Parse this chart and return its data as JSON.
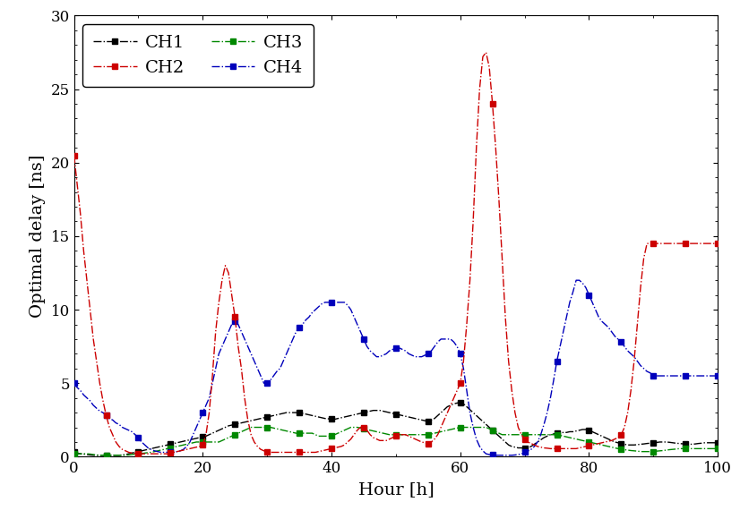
{
  "title": "",
  "xlabel": "Hour [h]",
  "ylabel": "Optimal delay [ns]",
  "xlim": [
    0,
    100
  ],
  "ylim": [
    0,
    30
  ],
  "xticks": [
    0,
    20,
    40,
    60,
    80,
    100
  ],
  "yticks": [
    0,
    5,
    10,
    15,
    20,
    25,
    30
  ],
  "channels": {
    "CH1": {
      "color": "#000000",
      "marker": "s",
      "markersize": 4
    },
    "CH2": {
      "color": "#cc0000",
      "marker": "s",
      "markersize": 4
    },
    "CH3": {
      "color": "#008800",
      "marker": "s",
      "markersize": 4
    },
    "CH4": {
      "color": "#0000bb",
      "marker": "s",
      "markersize": 4
    }
  },
  "legend_loc": "upper left",
  "figsize": [
    8.26,
    5.8
  ],
  "dpi": 100,
  "CH1_x": [
    0.0,
    0.5,
    1.0,
    1.5,
    2.0,
    2.5,
    3.0,
    3.5,
    4.0,
    4.5,
    5.0,
    5.5,
    6.0,
    6.5,
    7.0,
    7.5,
    8.0,
    8.5,
    9.0,
    9.5,
    10.0,
    10.5,
    11.0,
    11.5,
    12.0,
    12.5,
    13.0,
    13.5,
    14.0,
    14.5,
    15.0,
    15.5,
    16.0,
    16.5,
    17.0,
    17.5,
    18.0,
    18.5,
    19.0,
    19.5,
    20.0,
    20.5,
    21.0,
    21.5,
    22.0,
    22.5,
    23.0,
    23.5,
    24.0,
    24.5,
    25.0,
    25.5,
    26.0,
    26.5,
    27.0,
    27.5,
    28.0,
    28.5,
    29.0,
    29.5,
    30.0,
    30.5,
    31.0,
    31.5,
    32.0,
    32.5,
    33.0,
    33.5,
    34.0,
    34.5,
    35.0,
    35.5,
    36.0,
    36.5,
    37.0,
    37.5,
    38.0,
    38.5,
    39.0,
    39.5,
    40.0,
    40.5,
    41.0,
    41.5,
    42.0,
    42.5,
    43.0,
    43.5,
    44.0,
    44.5,
    45.0,
    45.5,
    46.0,
    46.5,
    47.0,
    47.5,
    48.0,
    48.5,
    49.0,
    49.5,
    50.0,
    50.5,
    51.0,
    51.5,
    52.0,
    52.5,
    53.0,
    53.5,
    54.0,
    54.5,
    55.0,
    55.5,
    56.0,
    56.5,
    57.0,
    57.5,
    58.0,
    58.5,
    59.0,
    59.5,
    60.0,
    60.5,
    61.0,
    61.5,
    62.0,
    62.5,
    63.0,
    63.5,
    64.0,
    64.5,
    65.0,
    65.5,
    66.0,
    66.5,
    67.0,
    67.5,
    68.0,
    68.5,
    69.0,
    69.5,
    70.0,
    70.5,
    71.0,
    71.5,
    72.0,
    72.5,
    73.0,
    73.5,
    74.0,
    74.5,
    75.0,
    75.5,
    76.0,
    76.5,
    77.0,
    77.5,
    78.0,
    78.5,
    79.0,
    79.5,
    80.0,
    80.5,
    81.0,
    81.5,
    82.0,
    82.5,
    83.0,
    83.5,
    84.0,
    84.5,
    85.0,
    85.5,
    86.0,
    86.5,
    87.0,
    87.5,
    88.0,
    88.5,
    89.0,
    89.5,
    90.0,
    90.5,
    91.0,
    91.5,
    92.0,
    92.5,
    93.0,
    93.5,
    94.0,
    94.5,
    95.0,
    95.5,
    96.0,
    96.5,
    97.0,
    97.5,
    98.0,
    98.5,
    99.0,
    99.5,
    100.0
  ],
  "CH1_y": [
    0.3,
    0.25,
    0.2,
    0.18,
    0.15,
    0.12,
    0.1,
    0.1,
    0.1,
    0.1,
    0.1,
    0.1,
    0.1,
    0.1,
    0.1,
    0.12,
    0.15,
    0.2,
    0.25,
    0.3,
    0.35,
    0.4,
    0.45,
    0.5,
    0.55,
    0.6,
    0.65,
    0.7,
    0.75,
    0.8,
    0.85,
    0.9,
    0.95,
    1.0,
    1.05,
    1.1,
    1.15,
    1.2,
    1.25,
    1.3,
    1.35,
    1.4,
    1.5,
    1.6,
    1.7,
    1.8,
    1.9,
    2.0,
    2.1,
    2.15,
    2.2,
    2.25,
    2.3,
    2.35,
    2.4,
    2.45,
    2.5,
    2.55,
    2.6,
    2.65,
    2.7,
    2.75,
    2.8,
    2.85,
    2.9,
    2.95,
    3.0,
    3.0,
    3.0,
    3.0,
    3.0,
    2.95,
    2.9,
    2.85,
    2.8,
    2.75,
    2.7,
    2.65,
    2.6,
    2.58,
    2.55,
    2.55,
    2.6,
    2.65,
    2.7,
    2.75,
    2.8,
    2.85,
    2.9,
    2.95,
    3.0,
    3.05,
    3.1,
    3.15,
    3.15,
    3.15,
    3.1,
    3.05,
    3.0,
    2.95,
    2.9,
    2.85,
    2.8,
    2.75,
    2.7,
    2.65,
    2.6,
    2.55,
    2.5,
    2.45,
    2.4,
    2.5,
    2.6,
    2.8,
    3.0,
    3.2,
    3.4,
    3.5,
    3.6,
    3.65,
    3.7,
    3.6,
    3.4,
    3.2,
    3.0,
    2.8,
    2.6,
    2.4,
    2.2,
    2.0,
    1.8,
    1.6,
    1.4,
    1.2,
    1.0,
    0.8,
    0.7,
    0.65,
    0.6,
    0.6,
    0.55,
    0.6,
    0.7,
    0.85,
    1.0,
    1.15,
    1.3,
    1.4,
    1.5,
    1.55,
    1.6,
    1.6,
    1.65,
    1.65,
    1.7,
    1.7,
    1.75,
    1.8,
    1.85,
    1.85,
    1.8,
    1.7,
    1.6,
    1.5,
    1.4,
    1.3,
    1.2,
    1.1,
    1.0,
    0.95,
    0.9,
    0.85,
    0.8,
    0.8,
    0.8,
    0.82,
    0.85,
    0.87,
    0.9,
    0.92,
    0.95,
    0.97,
    1.0,
    1.0,
    1.0,
    0.98,
    0.95,
    0.92,
    0.9,
    0.88,
    0.85,
    0.85,
    0.85,
    0.87,
    0.9,
    0.92,
    0.95,
    0.95,
    0.95,
    0.95,
    0.95
  ],
  "CH2_x": [
    0.0,
    0.5,
    1.0,
    1.5,
    2.0,
    2.5,
    3.0,
    3.5,
    4.0,
    4.5,
    5.0,
    5.5,
    6.0,
    6.5,
    7.0,
    7.5,
    8.0,
    8.5,
    9.0,
    9.5,
    10.0,
    10.5,
    11.0,
    11.5,
    12.0,
    12.5,
    13.0,
    13.5,
    14.0,
    14.5,
    15.0,
    15.5,
    16.0,
    16.5,
    17.0,
    17.5,
    18.0,
    18.5,
    19.0,
    19.5,
    20.0,
    20.5,
    21.0,
    21.5,
    22.0,
    22.5,
    23.0,
    23.5,
    24.0,
    24.5,
    25.0,
    25.5,
    26.0,
    26.5,
    27.0,
    27.5,
    28.0,
    28.5,
    29.0,
    29.5,
    30.0,
    30.5,
    31.0,
    31.5,
    32.0,
    32.5,
    33.0,
    33.5,
    34.0,
    34.5,
    35.0,
    35.5,
    36.0,
    36.5,
    37.0,
    37.5,
    38.0,
    38.5,
    39.0,
    39.5,
    40.0,
    40.5,
    41.0,
    41.5,
    42.0,
    42.5,
    43.0,
    43.5,
    44.0,
    44.5,
    45.0,
    45.5,
    46.0,
    46.5,
    47.0,
    47.5,
    48.0,
    48.5,
    49.0,
    49.5,
    50.0,
    50.5,
    51.0,
    51.5,
    52.0,
    52.5,
    53.0,
    53.5,
    54.0,
    54.5,
    55.0,
    55.5,
    56.0,
    56.5,
    57.0,
    57.5,
    58.0,
    58.5,
    59.0,
    59.5,
    60.0,
    60.5,
    61.0,
    61.5,
    62.0,
    62.5,
    63.0,
    63.5,
    64.0,
    64.5,
    65.0,
    65.5,
    66.0,
    66.5,
    67.0,
    67.5,
    68.0,
    68.5,
    69.0,
    69.5,
    70.0,
    70.5,
    71.0,
    71.5,
    72.0,
    72.5,
    73.0,
    73.5,
    74.0,
    74.5,
    75.0,
    75.5,
    76.0,
    76.5,
    77.0,
    77.5,
    78.0,
    78.5,
    79.0,
    79.5,
    80.0,
    80.5,
    81.0,
    81.5,
    82.0,
    82.5,
    83.0,
    83.5,
    84.0,
    84.5,
    85.0,
    85.5,
    86.0,
    86.5,
    87.0,
    87.5,
    88.0,
    88.5,
    89.0,
    89.5,
    90.0,
    90.5,
    91.0,
    91.5,
    92.0,
    92.5,
    93.0,
    93.5,
    94.0,
    94.5,
    95.0,
    95.5,
    96.0,
    96.5,
    97.0,
    97.5,
    98.0,
    98.5,
    99.0,
    99.5,
    100.0
  ],
  "CH2_y": [
    20.5,
    18.5,
    16.5,
    14.0,
    12.0,
    10.0,
    8.0,
    6.5,
    5.0,
    3.8,
    2.8,
    2.0,
    1.5,
    1.0,
    0.7,
    0.5,
    0.4,
    0.3,
    0.25,
    0.22,
    0.2,
    0.2,
    0.2,
    0.2,
    0.2,
    0.2,
    0.2,
    0.2,
    0.2,
    0.2,
    0.25,
    0.3,
    0.35,
    0.4,
    0.45,
    0.5,
    0.55,
    0.6,
    0.65,
    0.7,
    0.8,
    1.5,
    3.0,
    5.5,
    8.5,
    10.5,
    12.0,
    13.0,
    12.5,
    11.0,
    9.5,
    7.5,
    6.0,
    4.0,
    2.5,
    1.5,
    1.0,
    0.7,
    0.5,
    0.4,
    0.35,
    0.3,
    0.3,
    0.3,
    0.3,
    0.3,
    0.3,
    0.3,
    0.3,
    0.3,
    0.3,
    0.3,
    0.3,
    0.3,
    0.3,
    0.3,
    0.35,
    0.4,
    0.45,
    0.5,
    0.55,
    0.6,
    0.65,
    0.7,
    0.8,
    1.0,
    1.2,
    1.5,
    1.8,
    2.0,
    2.0,
    1.8,
    1.5,
    1.3,
    1.2,
    1.1,
    1.1,
    1.1,
    1.2,
    1.3,
    1.4,
    1.5,
    1.5,
    1.5,
    1.4,
    1.3,
    1.2,
    1.1,
    1.0,
    0.95,
    0.9,
    1.0,
    1.2,
    1.5,
    2.0,
    2.5,
    3.0,
    3.5,
    4.0,
    4.5,
    5.0,
    6.5,
    9.0,
    12.0,
    16.0,
    21.0,
    25.0,
    27.2,
    27.5,
    26.5,
    24.0,
    21.0,
    17.5,
    13.5,
    9.5,
    6.5,
    4.5,
    3.0,
    2.0,
    1.5,
    1.2,
    1.0,
    0.9,
    0.8,
    0.7,
    0.65,
    0.6,
    0.58,
    0.55,
    0.55,
    0.55,
    0.55,
    0.55,
    0.55,
    0.55,
    0.55,
    0.55,
    0.6,
    0.65,
    0.7,
    0.75,
    0.8,
    0.85,
    0.9,
    0.95,
    1.0,
    1.05,
    1.1,
    1.2,
    1.3,
    1.5,
    2.0,
    3.0,
    4.5,
    6.5,
    9.0,
    11.5,
    13.5,
    14.5,
    14.5,
    14.5,
    14.5,
    14.5,
    14.5,
    14.5,
    14.5,
    14.5,
    14.5,
    14.5,
    14.5,
    14.5,
    14.5,
    14.5,
    14.5,
    14.5,
    14.5,
    14.5,
    14.5,
    14.5,
    14.5,
    14.5
  ],
  "CH3_x": [
    0.0,
    0.5,
    1.0,
    1.5,
    2.0,
    2.5,
    3.0,
    3.5,
    4.0,
    4.5,
    5.0,
    5.5,
    6.0,
    6.5,
    7.0,
    7.5,
    8.0,
    8.5,
    9.0,
    9.5,
    10.0,
    10.5,
    11.0,
    11.5,
    12.0,
    12.5,
    13.0,
    13.5,
    14.0,
    14.5,
    15.0,
    15.5,
    16.0,
    16.5,
    17.0,
    17.5,
    18.0,
    18.5,
    19.0,
    19.5,
    20.0,
    20.5,
    21.0,
    21.5,
    22.0,
    22.5,
    23.0,
    23.5,
    24.0,
    24.5,
    25.0,
    25.5,
    26.0,
    26.5,
    27.0,
    27.5,
    28.0,
    28.5,
    29.0,
    29.5,
    30.0,
    30.5,
    31.0,
    31.5,
    32.0,
    32.5,
    33.0,
    33.5,
    34.0,
    34.5,
    35.0,
    35.5,
    36.0,
    36.5,
    37.0,
    37.5,
    38.0,
    38.5,
    39.0,
    39.5,
    40.0,
    40.5,
    41.0,
    41.5,
    42.0,
    42.5,
    43.0,
    43.5,
    44.0,
    44.5,
    45.0,
    45.5,
    46.0,
    46.5,
    47.0,
    47.5,
    48.0,
    48.5,
    49.0,
    49.5,
    50.0,
    50.5,
    51.0,
    51.5,
    52.0,
    52.5,
    53.0,
    53.5,
    54.0,
    54.5,
    55.0,
    55.5,
    56.0,
    56.5,
    57.0,
    57.5,
    58.0,
    58.5,
    59.0,
    59.5,
    60.0,
    60.5,
    61.0,
    61.5,
    62.0,
    62.5,
    63.0,
    63.5,
    64.0,
    64.5,
    65.0,
    65.5,
    66.0,
    66.5,
    67.0,
    67.5,
    68.0,
    68.5,
    69.0,
    69.5,
    70.0,
    70.5,
    71.0,
    71.5,
    72.0,
    72.5,
    73.0,
    73.5,
    74.0,
    74.5,
    75.0,
    75.5,
    76.0,
    76.5,
    77.0,
    77.5,
    78.0,
    78.5,
    79.0,
    79.5,
    80.0,
    80.5,
    81.0,
    81.5,
    82.0,
    82.5,
    83.0,
    83.5,
    84.0,
    84.5,
    85.0,
    85.5,
    86.0,
    86.5,
    87.0,
    87.5,
    88.0,
    88.5,
    89.0,
    89.5,
    90.0,
    90.5,
    91.0,
    91.5,
    92.0,
    92.5,
    93.0,
    93.5,
    94.0,
    94.5,
    95.0,
    95.5,
    96.0,
    96.5,
    97.0,
    97.5,
    98.0,
    98.5,
    99.0,
    99.5,
    100.0
  ],
  "CH3_y": [
    0.2,
    0.2,
    0.2,
    0.2,
    0.2,
    0.18,
    0.15,
    0.12,
    0.1,
    0.1,
    0.1,
    0.1,
    0.1,
    0.1,
    0.1,
    0.1,
    0.1,
    0.12,
    0.15,
    0.18,
    0.2,
    0.22,
    0.25,
    0.28,
    0.3,
    0.35,
    0.4,
    0.45,
    0.5,
    0.55,
    0.6,
    0.65,
    0.7,
    0.75,
    0.8,
    0.85,
    0.9,
    0.95,
    1.0,
    1.0,
    1.0,
    1.0,
    1.0,
    1.0,
    1.0,
    1.0,
    1.1,
    1.2,
    1.3,
    1.4,
    1.5,
    1.6,
    1.7,
    1.8,
    1.9,
    2.0,
    2.0,
    2.0,
    2.0,
    2.0,
    2.0,
    2.0,
    1.95,
    1.9,
    1.85,
    1.8,
    1.75,
    1.7,
    1.65,
    1.6,
    1.6,
    1.6,
    1.6,
    1.6,
    1.6,
    1.5,
    1.4,
    1.4,
    1.4,
    1.4,
    1.4,
    1.5,
    1.6,
    1.7,
    1.8,
    1.9,
    2.0,
    2.0,
    2.0,
    1.95,
    1.9,
    1.85,
    1.8,
    1.75,
    1.7,
    1.65,
    1.6,
    1.55,
    1.5,
    1.5,
    1.5,
    1.5,
    1.5,
    1.5,
    1.5,
    1.5,
    1.5,
    1.5,
    1.5,
    1.5,
    1.5,
    1.55,
    1.6,
    1.65,
    1.7,
    1.75,
    1.8,
    1.85,
    1.9,
    1.95,
    2.0,
    2.0,
    2.0,
    2.0,
    2.0,
    2.0,
    2.0,
    2.0,
    2.0,
    1.9,
    1.8,
    1.7,
    1.6,
    1.5,
    1.5,
    1.5,
    1.5,
    1.5,
    1.5,
    1.5,
    1.5,
    1.5,
    1.5,
    1.5,
    1.5,
    1.5,
    1.5,
    1.5,
    1.5,
    1.5,
    1.5,
    1.45,
    1.4,
    1.35,
    1.3,
    1.25,
    1.2,
    1.15,
    1.1,
    1.05,
    1.0,
    0.95,
    0.9,
    0.85,
    0.8,
    0.75,
    0.7,
    0.65,
    0.6,
    0.55,
    0.5,
    0.48,
    0.45,
    0.42,
    0.4,
    0.38,
    0.35,
    0.35,
    0.35,
    0.35,
    0.35,
    0.38,
    0.4,
    0.42,
    0.45,
    0.48,
    0.5,
    0.52,
    0.55,
    0.55,
    0.55,
    0.55,
    0.55,
    0.55,
    0.55,
    0.55,
    0.55,
    0.55,
    0.55,
    0.55,
    0.55
  ],
  "CH4_x": [
    0.0,
    0.5,
    1.0,
    1.5,
    2.0,
    2.5,
    3.0,
    3.5,
    4.0,
    4.5,
    5.0,
    5.5,
    6.0,
    6.5,
    7.0,
    7.5,
    8.0,
    8.5,
    9.0,
    9.5,
    10.0,
    10.5,
    11.0,
    11.5,
    12.0,
    12.5,
    13.0,
    13.5,
    14.0,
    14.5,
    15.0,
    15.5,
    16.0,
    16.5,
    17.0,
    17.5,
    18.0,
    18.5,
    19.0,
    19.5,
    20.0,
    20.5,
    21.0,
    21.5,
    22.0,
    22.5,
    23.0,
    23.5,
    24.0,
    24.5,
    25.0,
    25.5,
    26.0,
    26.5,
    27.0,
    27.5,
    28.0,
    28.5,
    29.0,
    29.5,
    30.0,
    30.5,
    31.0,
    31.5,
    32.0,
    32.5,
    33.0,
    33.5,
    34.0,
    34.5,
    35.0,
    35.5,
    36.0,
    36.5,
    37.0,
    37.5,
    38.0,
    38.5,
    39.0,
    39.5,
    40.0,
    40.5,
    41.0,
    41.5,
    42.0,
    42.5,
    43.0,
    43.5,
    44.0,
    44.5,
    45.0,
    45.5,
    46.0,
    46.5,
    47.0,
    47.5,
    48.0,
    48.5,
    49.0,
    49.5,
    50.0,
    50.5,
    51.0,
    51.5,
    52.0,
    52.5,
    53.0,
    53.5,
    54.0,
    54.5,
    55.0,
    55.5,
    56.0,
    56.5,
    57.0,
    57.5,
    58.0,
    58.5,
    59.0,
    59.5,
    60.0,
    60.5,
    61.0,
    61.5,
    62.0,
    62.5,
    63.0,
    63.5,
    64.0,
    64.5,
    65.0,
    65.5,
    66.0,
    66.5,
    67.0,
    67.5,
    68.0,
    68.5,
    69.0,
    69.5,
    70.0,
    70.5,
    71.0,
    71.5,
    72.0,
    72.5,
    73.0,
    73.5,
    74.0,
    74.5,
    75.0,
    75.5,
    76.0,
    76.5,
    77.0,
    77.5,
    78.0,
    78.5,
    79.0,
    79.5,
    80.0,
    80.5,
    81.0,
    81.5,
    82.0,
    82.5,
    83.0,
    83.5,
    84.0,
    84.5,
    85.0,
    85.5,
    86.0,
    86.5,
    87.0,
    87.5,
    88.0,
    88.5,
    89.0,
    89.5,
    90.0,
    90.5,
    91.0,
    91.5,
    92.0,
    92.5,
    93.0,
    93.5,
    94.0,
    94.5,
    95.0,
    95.5,
    96.0,
    96.5,
    97.0,
    97.5,
    98.0,
    98.5,
    99.0,
    99.5,
    100.0
  ],
  "CH4_y": [
    5.0,
    4.7,
    4.5,
    4.2,
    4.0,
    3.8,
    3.5,
    3.3,
    3.1,
    3.0,
    2.8,
    2.6,
    2.5,
    2.3,
    2.2,
    2.0,
    1.9,
    1.8,
    1.7,
    1.5,
    1.3,
    1.0,
    0.8,
    0.6,
    0.5,
    0.4,
    0.35,
    0.3,
    0.3,
    0.3,
    0.3,
    0.3,
    0.35,
    0.4,
    0.5,
    0.7,
    1.0,
    1.5,
    2.0,
    2.5,
    3.0,
    3.5,
    4.0,
    5.0,
    6.0,
    7.0,
    7.5,
    8.0,
    8.5,
    9.0,
    9.2,
    9.0,
    8.5,
    8.0,
    7.5,
    7.0,
    6.5,
    6.0,
    5.5,
    5.0,
    5.0,
    5.2,
    5.5,
    5.8,
    6.0,
    6.5,
    7.0,
    7.5,
    8.0,
    8.5,
    8.8,
    9.0,
    9.3,
    9.5,
    9.8,
    10.0,
    10.2,
    10.4,
    10.5,
    10.5,
    10.5,
    10.5,
    10.5,
    10.5,
    10.5,
    10.3,
    10.0,
    9.5,
    9.0,
    8.5,
    8.0,
    7.5,
    7.2,
    7.0,
    6.8,
    6.8,
    6.9,
    7.0,
    7.2,
    7.3,
    7.4,
    7.4,
    7.3,
    7.2,
    7.0,
    6.9,
    6.8,
    6.8,
    6.8,
    6.9,
    7.0,
    7.2,
    7.5,
    7.8,
    8.0,
    8.0,
    8.0,
    8.0,
    7.8,
    7.5,
    7.0,
    6.0,
    4.5,
    3.0,
    2.0,
    1.2,
    0.7,
    0.4,
    0.2,
    0.15,
    0.12,
    0.1,
    0.1,
    0.1,
    0.1,
    0.1,
    0.1,
    0.12,
    0.15,
    0.2,
    0.3,
    0.4,
    0.5,
    0.7,
    1.0,
    1.5,
    2.2,
    3.0,
    4.0,
    5.2,
    6.5,
    7.5,
    8.5,
    9.5,
    10.5,
    11.2,
    12.0,
    12.0,
    11.8,
    11.5,
    11.0,
    10.5,
    10.0,
    9.5,
    9.2,
    9.0,
    8.8,
    8.5,
    8.2,
    8.0,
    7.8,
    7.5,
    7.2,
    7.0,
    6.8,
    6.5,
    6.2,
    6.0,
    5.8,
    5.7,
    5.5,
    5.5,
    5.5,
    5.5,
    5.5,
    5.5,
    5.5,
    5.5,
    5.5,
    5.5,
    5.5,
    5.5,
    5.5,
    5.5,
    5.5,
    5.5,
    5.5,
    5.5,
    5.5,
    5.5,
    5.5
  ]
}
